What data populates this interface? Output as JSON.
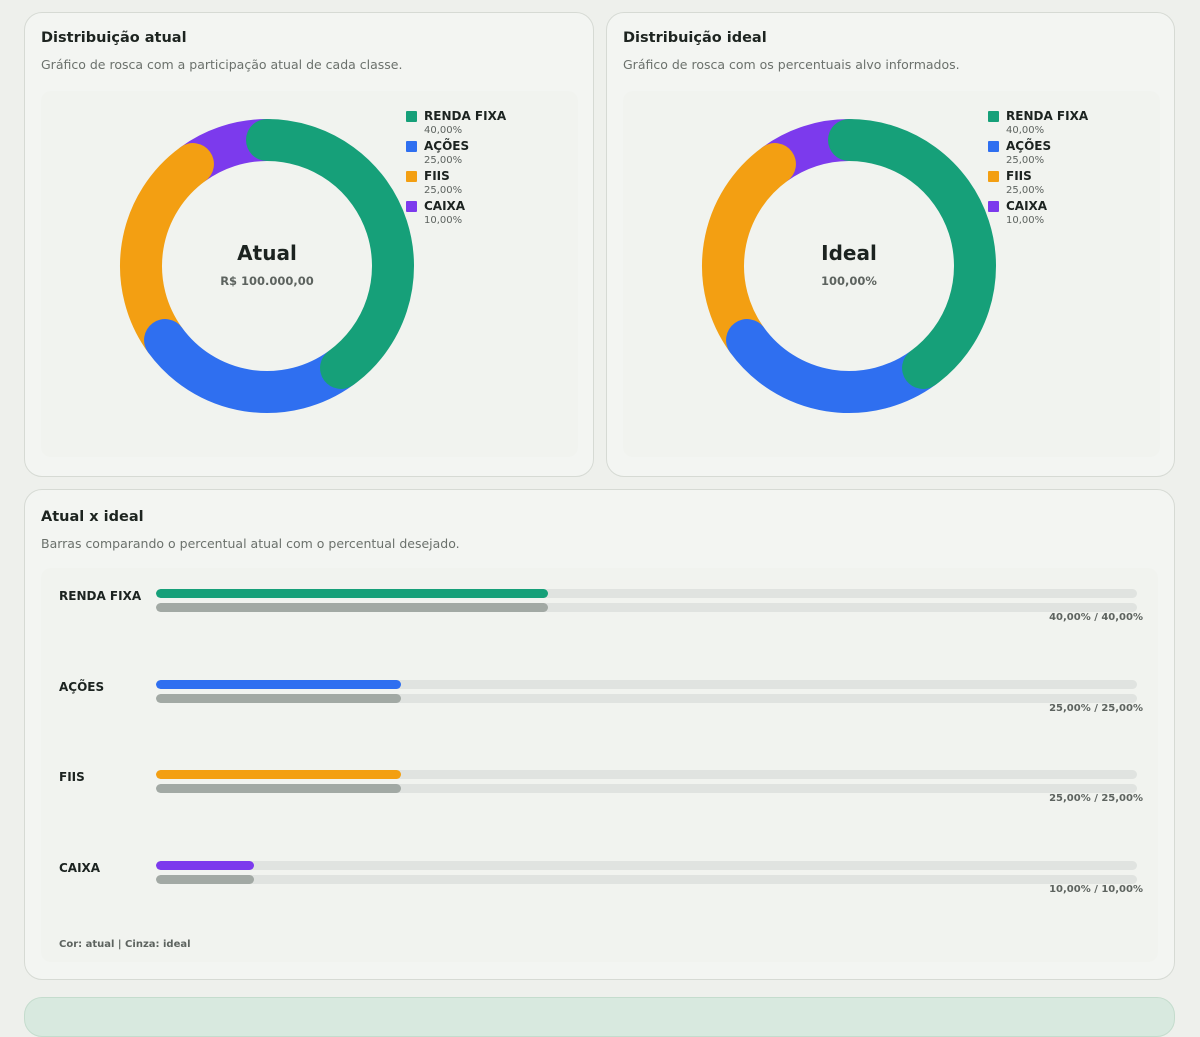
{
  "colors": {
    "renda_fixa": "#16a079",
    "acoes": "#2f6ff0",
    "fiis": "#f39f12",
    "caixa": "#7c3aed",
    "ideal_gray": "#a2a9a4",
    "track": "#e0e3e0"
  },
  "donut_atual": {
    "title": "Distribuição atual",
    "subtitle": "Gráfico de rosca com a participação atual de cada classe.",
    "center_title": "Atual",
    "center_value": "R$ 100.000,00"
  },
  "donut_ideal": {
    "title": "Distribuição ideal",
    "subtitle": "Gráfico de rosca com os percentuais alvo informados.",
    "center_title": "Ideal",
    "center_value": "100,00%"
  },
  "comparison": {
    "title": "Atual x ideal",
    "subtitle": "Barras comparando o percentual atual com o percentual desejado.",
    "note": "Cor: atual | Cinza: ideal"
  },
  "chart_data": [
    {
      "type": "pie",
      "title": "Distribuição atual",
      "categories": [
        "RENDA FIXA",
        "AÇÕES",
        "FIIS",
        "CAIXA"
      ],
      "values": [
        40,
        25,
        25,
        10
      ],
      "labels": [
        "40,00%",
        "25,00%",
        "25,00%",
        "10,00%"
      ],
      "legend": "top-right"
    },
    {
      "type": "pie",
      "title": "Distribuição ideal",
      "categories": [
        "RENDA FIXA",
        "AÇÕES",
        "FIIS",
        "CAIXA"
      ],
      "values": [
        40,
        25,
        25,
        10
      ],
      "labels": [
        "40,00%",
        "25,00%",
        "25,00%",
        "10,00%"
      ],
      "legend": "top-right"
    },
    {
      "type": "bar",
      "title": "Atual x ideal",
      "categories": [
        "RENDA FIXA",
        "AÇÕES",
        "FIIS",
        "CAIXA"
      ],
      "series": [
        {
          "values": [
            40,
            25,
            25,
            10
          ]
        },
        {
          "values": [
            40,
            25,
            25,
            10
          ]
        }
      ],
      "labels": [
        "40,00% / 40,00%",
        "25,00% / 25,00%",
        "25,00% / 25,00%",
        "10,00% / 10,00%"
      ],
      "xlim": [
        0,
        100
      ]
    }
  ]
}
